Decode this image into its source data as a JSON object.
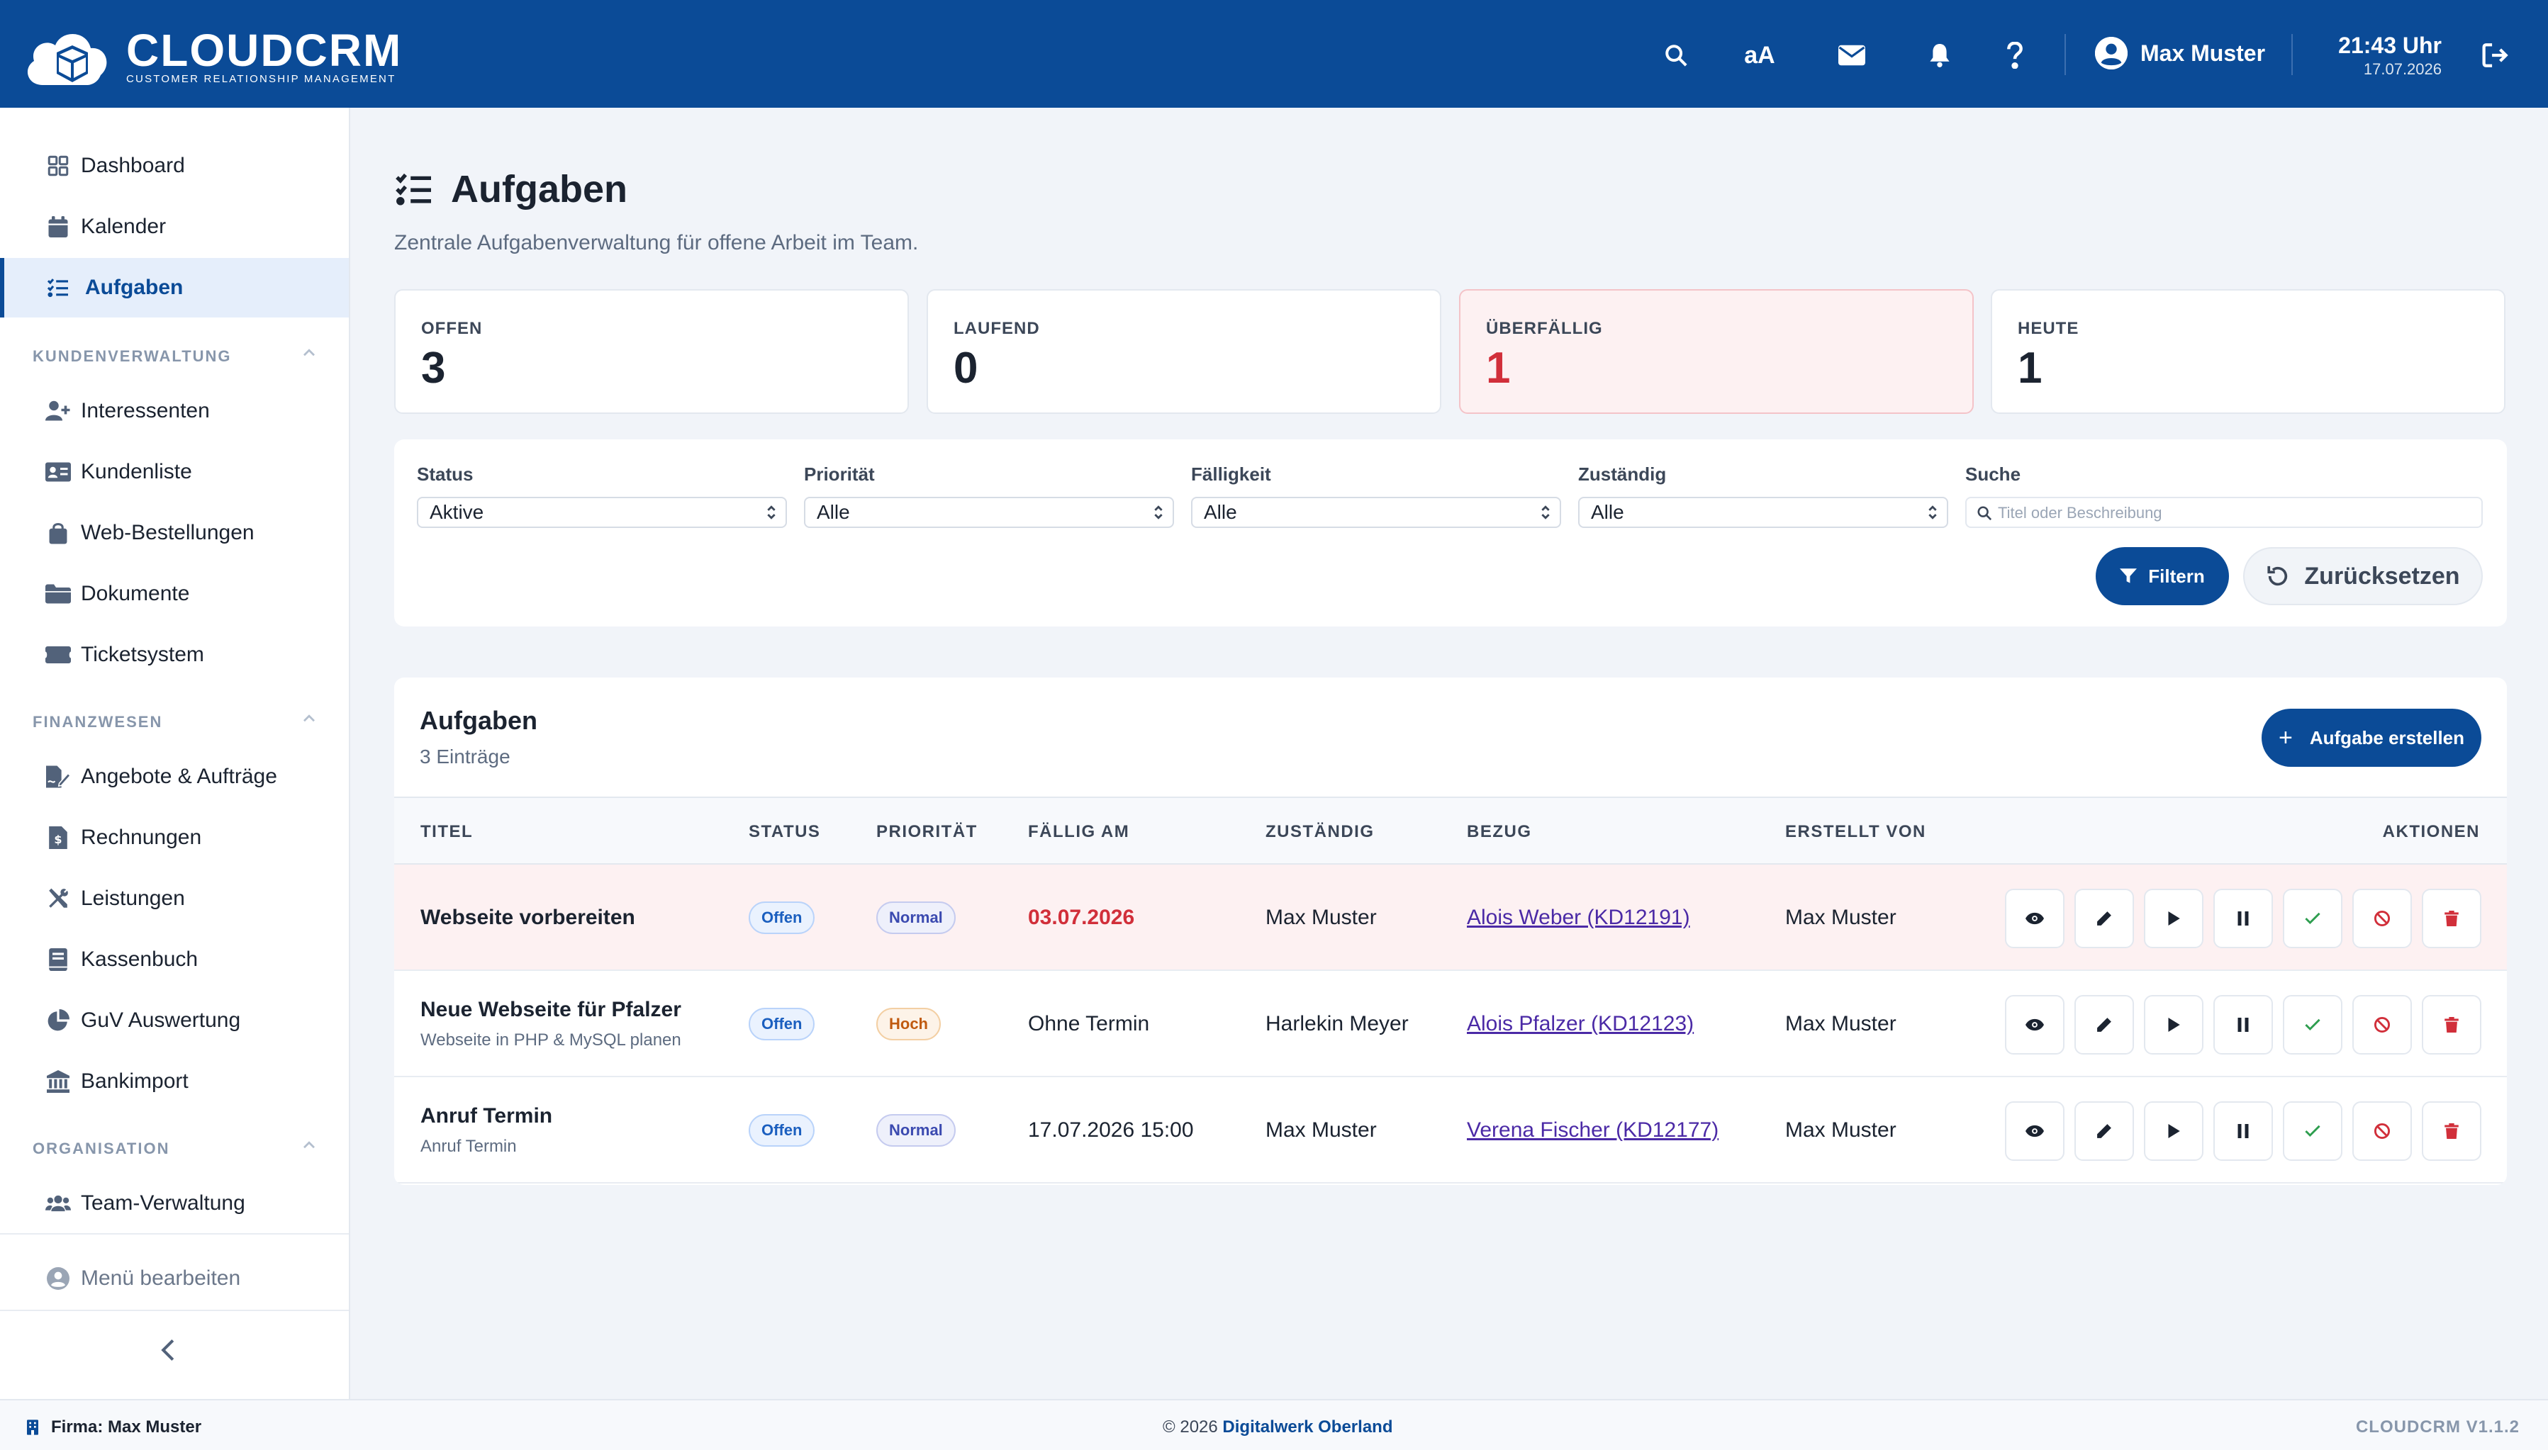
{
  "header": {
    "logo_title": "CLOUDCRM",
    "logo_subtitle": "CUSTOMER RELATIONSHIP MANAGEMENT",
    "font_size_label": "aA",
    "user_name": "Max Muster",
    "time": "21:43 Uhr",
    "date": "17.07.2026"
  },
  "sidebar": {
    "items_top": [
      {
        "label": "Dashboard",
        "icon": "grid-icon"
      },
      {
        "label": "Kalender",
        "icon": "calendar-icon"
      },
      {
        "label": "Aufgaben",
        "icon": "tasks-icon",
        "active": true
      }
    ],
    "section_customers": "KUNDENVERWALTUNG",
    "items_customers": [
      {
        "label": "Interessenten",
        "icon": "user-plus-icon"
      },
      {
        "label": "Kundenliste",
        "icon": "id-card-icon"
      },
      {
        "label": "Web-Bestellungen",
        "icon": "shopping-bag-icon"
      },
      {
        "label": "Dokumente",
        "icon": "folder-icon"
      },
      {
        "label": "Ticketsystem",
        "icon": "ticket-icon"
      }
    ],
    "section_finance": "FINANZWESEN",
    "items_finance": [
      {
        "label": "Angebote & Aufträge",
        "icon": "file-signature-icon"
      },
      {
        "label": "Rechnungen",
        "icon": "invoice-icon"
      },
      {
        "label": "Leistungen",
        "icon": "tools-icon"
      },
      {
        "label": "Kassenbuch",
        "icon": "book-icon"
      },
      {
        "label": "GuV Auswertung",
        "icon": "pie-chart-icon"
      },
      {
        "label": "Bankimport",
        "icon": "bank-icon"
      }
    ],
    "section_org": "ORGANISATION",
    "items_org": [
      {
        "label": "Team-Verwaltung",
        "icon": "users-icon"
      }
    ],
    "menu_edit": "Menü bearbeiten"
  },
  "page": {
    "title": "Aufgaben",
    "subtitle": "Zentrale Aufgabenverwaltung für offene Arbeit im Team."
  },
  "stats": [
    {
      "label": "OFFEN",
      "value": "3"
    },
    {
      "label": "LAUFEND",
      "value": "0"
    },
    {
      "label": "ÜBERFÄLLIG",
      "value": "1",
      "warn": true
    },
    {
      "label": "HEUTE",
      "value": "1"
    }
  ],
  "filters": {
    "status_label": "Status",
    "status_value": "Aktive",
    "priority_label": "Priorität",
    "priority_value": "Alle",
    "due_label": "Fälligkeit",
    "due_value": "Alle",
    "assignee_label": "Zuständig",
    "assignee_value": "Alle",
    "search_label": "Suche",
    "search_placeholder": "Titel oder Beschreibung",
    "filter_button": "Filtern",
    "reset_button": "Zurücksetzen"
  },
  "tasks": {
    "title": "Aufgaben",
    "count": "3 Einträge",
    "create_button": "Aufgabe erstellen",
    "columns": [
      "TITEL",
      "STATUS",
      "PRIORITÄT",
      "FÄLLIG AM",
      "ZUSTÄNDIG",
      "BEZUG",
      "ERSTELLT VON",
      "AKTIONEN"
    ],
    "rows": [
      {
        "title": "Webseite vorbereiten",
        "subtitle": "",
        "status": "Offen",
        "priority": "Normal",
        "due": "03.07.2026",
        "assignee": "Max Muster",
        "reference": "Alois Weber (KD12191)",
        "created_by": "Max Muster",
        "overdue": true
      },
      {
        "title": "Neue Webseite für Pfalzer",
        "subtitle": "Webseite in PHP & MySQL planen",
        "status": "Offen",
        "priority": "Hoch",
        "due": "Ohne Termin",
        "assignee": "Harlekin Meyer",
        "reference": "Alois Pfalzer (KD12123)",
        "created_by": "Max Muster",
        "overdue": false
      },
      {
        "title": "Anruf Termin",
        "subtitle": "Anruf Termin",
        "status": "Offen",
        "priority": "Normal",
        "due": "17.07.2026 15:00",
        "assignee": "Max Muster",
        "reference": "Verena Fischer (KD12177)",
        "created_by": "Max Muster",
        "overdue": false
      }
    ],
    "action_icons": [
      "view-icon",
      "edit-icon",
      "start-icon",
      "pause-icon",
      "complete-icon",
      "cancel-icon",
      "delete-icon"
    ]
  },
  "footer": {
    "company": "Firma: Max Muster",
    "copyright_prefix": "© 2026",
    "copyright_name": "Digitalwerk Oberland",
    "version": "CLOUDCRM V1.1.2"
  },
  "colors": {
    "primary": "#0b4b97",
    "danger": "#d12f3a",
    "success": "#2e9e4f",
    "link": "#4b2aa6"
  }
}
